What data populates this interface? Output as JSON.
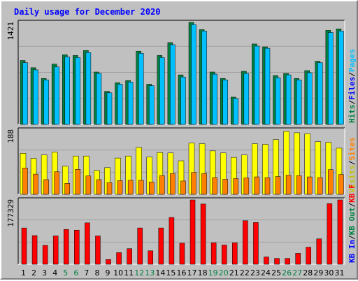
{
  "chart_data": {
    "type": "bar",
    "title": "Daily usage for December 2020",
    "days": [
      "1",
      "2",
      "3",
      "4",
      "5",
      "6",
      "7",
      "8",
      "9",
      "10",
      "11",
      "12",
      "13",
      "14",
      "15",
      "16",
      "17",
      "18",
      "19",
      "20",
      "21",
      "22",
      "23",
      "24",
      "25",
      "26",
      "27",
      "28",
      "29",
      "30",
      "31"
    ],
    "weekend_days": [
      "5",
      "6",
      "12",
      "13",
      "19",
      "20",
      "26",
      "27"
    ],
    "panels": [
      {
        "name": "pages-files-hits",
        "ymax": 1421,
        "ymax_label": "1421",
        "side_labels": [
          {
            "text": "Hits",
            "color": "#008040"
          },
          {
            "text": "/",
            "color": "#000000"
          },
          {
            "text": "Files",
            "color": "#0000ff"
          },
          {
            "text": "/",
            "color": "#000000"
          },
          {
            "text": "Pages",
            "color": "#00c0ff"
          }
        ],
        "series": [
          {
            "name": "Hits",
            "color": "#008040",
            "values": [
              890,
              790,
              640,
              840,
              970,
              960,
              1030,
              730,
              460,
              580,
              610,
              1020,
              560,
              960,
              1140,
              690,
              1421,
              1320,
              730,
              640,
              380,
              740,
              1120,
              1080,
              680,
              710,
              640,
              750,
              880,
              1310,
              1330
            ]
          },
          {
            "name": "Files",
            "color": "#00c0ff",
            "values": [
              860,
              760,
              620,
              800,
              940,
              930,
              1000,
              710,
              440,
              560,
              590,
              990,
              540,
              930,
              1110,
              660,
              1390,
              1300,
              700,
              620,
              360,
              710,
              1090,
              1060,
              650,
              690,
              620,
              720,
              860,
              1280,
              1300
            ]
          },
          {
            "name": "Pages",
            "color": "#00c0ff",
            "values": [
              0,
              0,
              0,
              0,
              0,
              0,
              0,
              0,
              0,
              0,
              0,
              0,
              0,
              0,
              0,
              0,
              0,
              0,
              0,
              0,
              0,
              0,
              0,
              0,
              0,
              0,
              0,
              0,
              0,
              0,
              0
            ]
          }
        ]
      },
      {
        "name": "visits-sites",
        "ymax": 188,
        "ymax_label": "188",
        "side_labels": [
          {
            "text": "Visits",
            "color": "#c0c000"
          },
          {
            "text": "/",
            "color": "#000000"
          },
          {
            "text": "Sites",
            "color": "#ff8000"
          }
        ],
        "series": [
          {
            "name": "Visits",
            "color": "#ffff00",
            "values": [
              120,
              105,
              115,
              123,
              82,
              112,
              112,
              70,
              78,
              106,
              112,
              137,
              109,
              122,
              121,
              98,
              150,
              148,
              127,
              121,
              108,
              115,
              148,
              146,
              160,
              184,
              180,
              177,
              154,
              152,
              135
            ]
          },
          {
            "name": "Sites",
            "color": "#ff8000",
            "values": [
              77,
              59,
              43,
              66,
              32,
              73,
              54,
              43,
              34,
              40,
              41,
              41,
              36,
              55,
              61,
              39,
              64,
              61,
              49,
              44,
              46,
              48,
              51,
              49,
              52,
              56,
              55,
              51,
              49,
              72,
              58
            ]
          }
        ]
      },
      {
        "name": "kbytes",
        "ymax": 177329,
        "ymax_label": "177329",
        "side_labels": [
          {
            "text": "KB In",
            "color": "#0000ff"
          },
          {
            "text": "/",
            "color": "#000000"
          },
          {
            "text": "KB Out",
            "color": "#008040"
          },
          {
            "text": "/",
            "color": "#000000"
          },
          {
            "text": "KB F",
            "color": "#ff0000"
          }
        ],
        "series": [
          {
            "name": "KB F",
            "color": "#ff0000",
            "values": [
              100000,
              79000,
              52000,
              78000,
              96000,
              94000,
              114000,
              78000,
              13000,
              32000,
              43000,
              100000,
              37000,
              100000,
              129000,
              58000,
              177329,
              166000,
              59000,
              53000,
              59000,
              120000,
              115000,
              20000,
              16000,
              16000,
              30000,
              47000,
              70000,
              167000,
              177329
            ]
          }
        ]
      }
    ]
  }
}
